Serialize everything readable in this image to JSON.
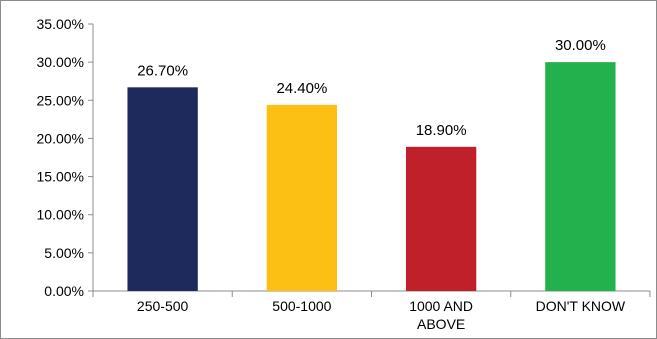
{
  "chart_data": {
    "type": "bar",
    "categories": [
      "250-500",
      "500-1000",
      "1000 AND ABOVE",
      "DON'T KNOW"
    ],
    "category_label_lines": [
      [
        "250-500"
      ],
      [
        "500-1000"
      ],
      [
        "1000 AND",
        "ABOVE"
      ],
      [
        "DON'T KNOW"
      ]
    ],
    "values": [
      26.7,
      24.4,
      18.9,
      30.0
    ],
    "data_labels": [
      "26.70%",
      "24.40%",
      "18.90%",
      "30.00%"
    ],
    "bar_colors": [
      "#1f2a5c",
      "#fcc015",
      "#c0202a",
      "#22b14c"
    ],
    "y_ticks": [
      0,
      5,
      10,
      15,
      20,
      25,
      30,
      35
    ],
    "y_tick_labels": [
      "0.00%",
      "5.00%",
      "10.00%",
      "15.00%",
      "20.00%",
      "25.00%",
      "30.00%",
      "35.00%"
    ],
    "ylim": [
      0,
      35
    ],
    "title": "",
    "xlabel": "",
    "ylabel": "",
    "grid": false,
    "legend": "none"
  }
}
